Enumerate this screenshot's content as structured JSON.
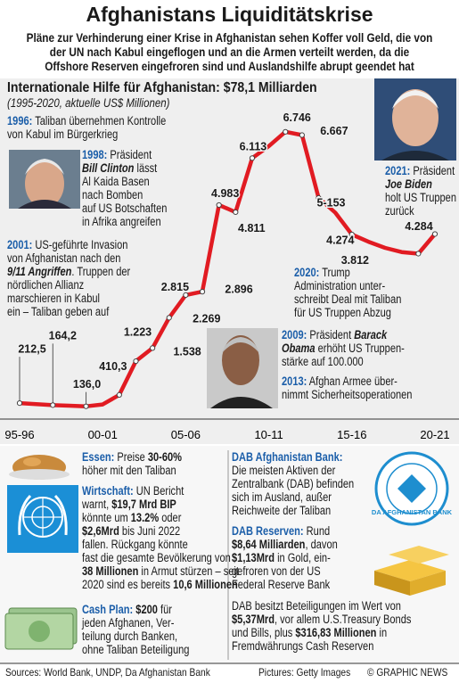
{
  "header": {
    "title": "Afghanistans Liquiditätskrise",
    "subtitle": "Pläne zur Verhinderung einer Krise in Afghanistan sehen Koffer voll Geld, die von\nder UN nach Kabul eingeflogen und an die Armen verteilt werden, da die\nOffshore Reserven eingefroren sind und Auslandshilfe abrupt geendet hat"
  },
  "chart_data": {
    "type": "line",
    "title": "Internationale Hilfe für Afghanistan: $78,1 Milliarden",
    "subtitle": "(1995-2020, aktuelle US$ Millionen)",
    "categories": [
      "95-96",
      null,
      null,
      null,
      null,
      "00-01",
      null,
      null,
      null,
      null,
      "05-06",
      null,
      null,
      null,
      null,
      "10-11",
      null,
      null,
      null,
      null,
      "15-16",
      null,
      null,
      null,
      null,
      "20-21"
    ],
    "values": [
      212.5,
      190,
      164.2,
      150,
      136.0,
      180,
      410.3,
      1223,
      1538,
      2269,
      2815,
      2896,
      4983,
      4811,
      6113,
      6400,
      6746,
      6667,
      5153,
      4800,
      4274,
      4100,
      3950,
      3850,
      3812,
      4284
    ],
    "value_labels": [
      "212,5",
      null,
      "164,2",
      null,
      "136,0",
      null,
      "410,3",
      "1.223",
      "1.538",
      "2.269",
      "2.815",
      "2.896",
      "4.983",
      "4.811",
      "6.113",
      null,
      "6.746",
      "6.667",
      "5-153",
      null,
      "4.274",
      null,
      null,
      null,
      "3.812",
      "4.284"
    ],
    "color": "#e11b22",
    "ylim": [
      0,
      7000
    ],
    "annotations": [
      {
        "segments": [
          {
            "text": "1996:",
            "style": "h"
          },
          {
            "text": " Taliban übernehmen Kontrolle\nvon Kabul im Bürgerkrieg"
          }
        ]
      },
      {
        "segments": [
          {
            "text": "1998:",
            "style": "h"
          },
          {
            "text": " Präsident\n"
          },
          {
            "text": "Bill Clinton",
            "style": "bi"
          },
          {
            "text": " lässt\nAl Kaida Basen\nnach Bomben\nauf US Botschaften\nin Afrika angreifen"
          }
        ]
      },
      {
        "segments": [
          {
            "text": "2001:",
            "style": "h"
          },
          {
            "text": " US-geführte Invasion\nvon Afghanistan nach den\n"
          },
          {
            "text": "9/11 Angriffen",
            "style": "bi"
          },
          {
            "text": ". Truppen der\nnördlichen Allianz\nmarschieren in Kabul\nein – Taliban geben auf"
          }
        ]
      },
      {
        "segments": [
          {
            "text": "2021:",
            "style": "h"
          },
          {
            "text": " Präsident\n"
          },
          {
            "text": "Joe Biden",
            "style": "bi"
          },
          {
            "text": "\nholt US Truppen\nzurück"
          }
        ]
      },
      {
        "segments": [
          {
            "text": "2020:",
            "style": "h"
          },
          {
            "text": " Trump\nAdministration unter-\nschreibt Deal mit Taliban\nfür US Truppen Abzug"
          }
        ]
      },
      {
        "segments": [
          {
            "text": "2009:",
            "style": "h"
          },
          {
            "text": " Präsident "
          },
          {
            "text": "Barack\nObama",
            "style": "bi"
          },
          {
            "text": " erhöht US Truppen-\nstärke auf 100.000"
          }
        ]
      },
      {
        "segments": [
          {
            "text": "2013:",
            "style": "h"
          },
          {
            "text": " Afghan Armee über-\nnimmt Sicherheitsoperationen"
          }
        ]
      }
    ]
  },
  "panels": [
    {
      "segments": [
        {
          "text": "Essen:",
          "style": "h"
        },
        {
          "text": " Preise "
        },
        {
          "text": "30-60%",
          "style": "b"
        },
        {
          "text": "\nhöher mit den Taliban"
        }
      ]
    },
    {
      "segments": [
        {
          "text": "Wirtschaft:",
          "style": "h"
        },
        {
          "text": " UN Bericht\nwarnt, "
        },
        {
          "text": "$19,7 Mrd BIP",
          "style": "b"
        },
        {
          "text": "\nkönnte um "
        },
        {
          "text": "13.2%",
          "style": "b"
        },
        {
          "text": " oder\n"
        },
        {
          "text": "$2,6Mrd",
          "style": "b"
        },
        {
          "text": " bis Juni 2022\nfallen. Rückgang könnte\nfast die gesamte Bevölkerung von\n"
        },
        {
          "text": "38 Millionen",
          "style": "b"
        },
        {
          "text": " in Armut stürzen – seit\n2020 sind es bereits "
        },
        {
          "text": "10,6 Millionen",
          "style": "b"
        }
      ]
    },
    {
      "segments": [
        {
          "text": "Cash Plan:",
          "style": "h"
        },
        {
          "text": " "
        },
        {
          "text": "$200",
          "style": "b"
        },
        {
          "text": " für\njeden Afghanen, Ver-\nteilung durch Banken,\nohne Taliban Beteiligung"
        }
      ]
    },
    {
      "segments": [
        {
          "text": "DAB Afghanistan Bank:",
          "style": "h"
        },
        {
          "text": "\nDie meisten Aktiven der\nZentralbank (DAB) befinden\nsich im Ausland, außer\nReichweite der Taliban"
        }
      ]
    },
    {
      "segments": [
        {
          "text": "DAB Reserven:",
          "style": "h"
        },
        {
          "text": " Rund\n"
        },
        {
          "text": "$8,64 Milliarden",
          "style": "b"
        },
        {
          "text": ", davon\n"
        },
        {
          "text": "$1,13Mrd",
          "style": "b"
        },
        {
          "text": " in Gold, ein-\ngefroren von der US\nFederal Reserve Bank"
        }
      ]
    },
    {
      "segments": [
        {
          "text": "DAB besitzt Beteiligungen im Wert von\n"
        },
        {
          "text": "$5,37Mrd",
          "style": "b"
        },
        {
          "text": ", vor allem U.S.Treasury Bonds\nund Bills, plus "
        },
        {
          "text": "$316,83 Millionen",
          "style": "b"
        },
        {
          "text": " in\nFremdwährungs Cash Reserven"
        }
      ]
    }
  ],
  "logo": "DA AFGHANISTAN BANK",
  "footer": {
    "sources": "Sources: World Bank, UNDP, Da Afghanistan Bank",
    "pictures": "Pictures: Getty Images",
    "credit": "© GRAPHIC NEWS"
  }
}
